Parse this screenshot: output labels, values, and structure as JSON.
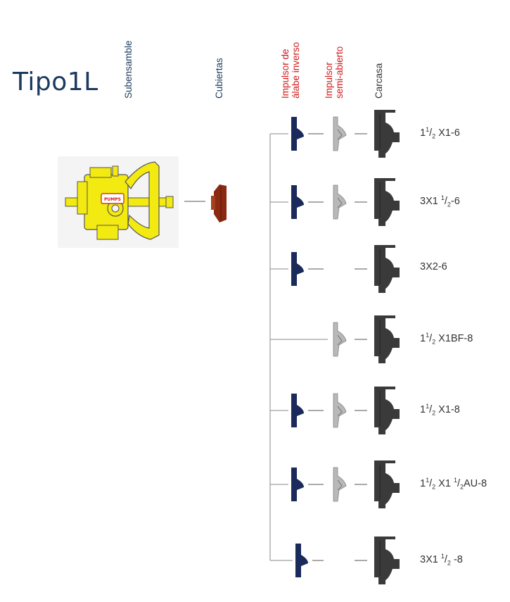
{
  "title": "Tipo1L",
  "headers": {
    "subensamble": "Subensamble",
    "cubiertas": "Cubiertas",
    "impulsor_inverso": [
      "Impulsor de",
      "álabe inverso"
    ],
    "impulsor_semi": [
      "Impulsor",
      "semi-abierto"
    ],
    "carcasa": "Carcasa"
  },
  "logo_text": "PUMPS",
  "colors": {
    "title": "#1c3a5e",
    "impeller_inverse": "#1a2a5a",
    "impeller_semi": "#b8b8b8",
    "casing": "#3a3a3a",
    "cover": "#8a2a12",
    "assembly": "#f2ea10",
    "header_red": "#d01818"
  },
  "rows": [
    {
      "model_parts": [
        "1",
        "1",
        "2",
        " X1-6"
      ],
      "kind": "frac-lead",
      "inverse": true,
      "semi": true
    },
    {
      "model_parts": [
        "3X1 ",
        "1",
        "2",
        "-6"
      ],
      "kind": "frac-tail",
      "inverse": true,
      "semi": true
    },
    {
      "model_parts": [
        "3X2-6"
      ],
      "kind": "plain",
      "inverse": true,
      "semi": false
    },
    {
      "model_parts": [
        "1",
        "1",
        "2",
        " X1BF-8"
      ],
      "kind": "frac-lead",
      "inverse": false,
      "semi": true
    },
    {
      "model_parts": [
        "1",
        "1",
        "2",
        " X1-8"
      ],
      "kind": "frac-lead",
      "inverse": true,
      "semi": true
    },
    {
      "model_parts": [
        "1",
        "1",
        "2",
        " X1 ",
        "1",
        "2",
        "AU-8"
      ],
      "kind": "frac-double",
      "inverse": true,
      "semi": true
    },
    {
      "model_parts": [
        "3X1 ",
        "1",
        "2",
        " -8"
      ],
      "kind": "frac-tail",
      "inverse": true,
      "semi": false
    }
  ]
}
